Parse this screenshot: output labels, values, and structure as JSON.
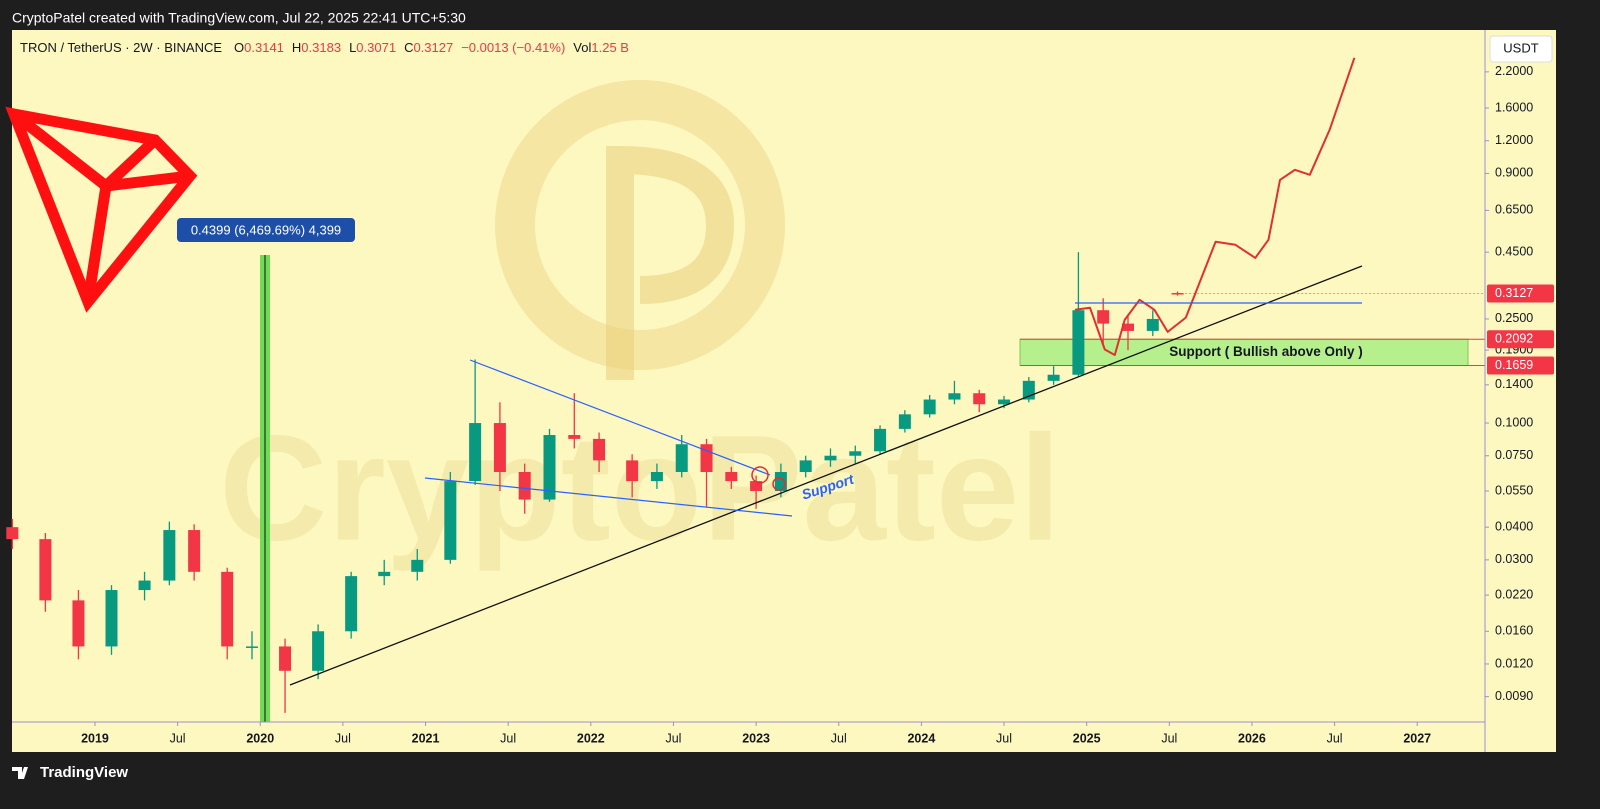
{
  "top_bar": "CryptoPatel created with TradingView.com, Jul 22, 2025 22:41 UTC+5:30",
  "footer": "TradingView",
  "chart_data": {
    "type": "candlestick",
    "title": "TRON / TetherUS · 2W · BINANCE",
    "ohlc_labels": [
      "O",
      "H",
      "L",
      "C"
    ],
    "change": "−0.0013 (−0.41%)",
    "volume_label": "Vol",
    "volume": "1.25 B",
    "currency": "USDT",
    "up_color": "#089981",
    "down_color": "#f23645",
    "x": [
      2018.5,
      2018.7,
      2018.9,
      2019.1,
      2019.3,
      2019.45,
      2019.6,
      2019.8,
      2019.95,
      2020.15,
      2020.35,
      2020.55,
      2020.75,
      2020.95,
      2021.15,
      2021.3,
      2021.45,
      2021.6,
      2021.75,
      2021.9,
      2022.05,
      2022.25,
      2022.4,
      2022.55,
      2022.7,
      2022.85,
      2023.0,
      2023.15,
      2023.3,
      2023.45,
      2023.6,
      2023.75,
      2023.9,
      2024.05,
      2024.2,
      2024.35,
      2024.5,
      2024.65,
      2024.8,
      2024.95,
      2025.1,
      2025.25,
      2025.4,
      2025.55
    ],
    "open": [
      0.04,
      0.036,
      0.021,
      0.014,
      0.023,
      0.025,
      0.039,
      0.027,
      0.014,
      0.014,
      0.0113,
      0.016,
      0.026,
      0.027,
      0.03,
      0.06,
      0.1,
      0.065,
      0.051,
      0.09,
      0.087,
      0.072,
      0.06,
      0.065,
      0.083,
      0.065,
      0.06,
      0.055,
      0.065,
      0.072,
      0.075,
      0.078,
      0.095,
      0.108,
      0.123,
      0.13,
      0.118,
      0.123,
      0.145,
      0.153,
      0.27,
      0.24,
      0.225,
      0.3141
    ],
    "high": [
      0.043,
      0.038,
      0.023,
      0.024,
      0.027,
      0.042,
      0.041,
      0.028,
      0.016,
      0.015,
      0.017,
      0.027,
      0.03,
      0.033,
      0.065,
      0.175,
      0.12,
      0.07,
      0.095,
      0.13,
      0.092,
      0.076,
      0.07,
      0.09,
      0.087,
      0.068,
      0.063,
      0.07,
      0.075,
      0.08,
      0.082,
      0.098,
      0.112,
      0.128,
      0.145,
      0.134,
      0.127,
      0.15,
      0.165,
      0.45,
      0.3,
      0.26,
      0.27,
      0.3183
    ],
    "low": [
      0.033,
      0.019,
      0.0125,
      0.013,
      0.021,
      0.024,
      0.025,
      0.0125,
      0.0125,
      0.0078,
      0.0105,
      0.015,
      0.024,
      0.025,
      0.029,
      0.058,
      0.055,
      0.045,
      0.05,
      0.08,
      0.065,
      0.052,
      0.056,
      0.062,
      0.048,
      0.056,
      0.047,
      0.052,
      0.062,
      0.068,
      0.07,
      0.076,
      0.092,
      0.105,
      0.118,
      0.11,
      0.114,
      0.12,
      0.14,
      0.15,
      0.2,
      0.19,
      0.215,
      0.3071
    ],
    "close": [
      0.036,
      0.021,
      0.014,
      0.023,
      0.025,
      0.039,
      0.027,
      0.014,
      0.014,
      0.0113,
      0.016,
      0.026,
      0.027,
      0.03,
      0.06,
      0.1,
      0.065,
      0.051,
      0.09,
      0.087,
      0.072,
      0.06,
      0.065,
      0.083,
      0.065,
      0.06,
      0.055,
      0.065,
      0.072,
      0.075,
      0.078,
      0.095,
      0.108,
      0.123,
      0.13,
      0.118,
      0.123,
      0.145,
      0.153,
      0.27,
      0.24,
      0.225,
      0.25,
      0.3127
    ],
    "xlim": [
      2018.498,
      2027.41
    ],
    "xticks": [
      {
        "value": 2019,
        "label": "2019"
      },
      {
        "value": 2019.5,
        "label": "Jul"
      },
      {
        "value": 2020,
        "label": "2020"
      },
      {
        "value": 2020.5,
        "label": "Jul"
      },
      {
        "value": 2021,
        "label": "2021"
      },
      {
        "value": 2021.5,
        "label": "Jul"
      },
      {
        "value": 2022,
        "label": "2022"
      },
      {
        "value": 2022.5,
        "label": "Jul"
      },
      {
        "value": 2023,
        "label": "2023"
      },
      {
        "value": 2023.5,
        "label": "Jul"
      },
      {
        "value": 2024,
        "label": "2024"
      },
      {
        "value": 2024.5,
        "label": "Jul"
      },
      {
        "value": 2025,
        "label": "2025"
      },
      {
        "value": 2025.5,
        "label": "Jul"
      },
      {
        "value": 2026,
        "label": "2026"
      },
      {
        "value": 2026.5,
        "label": "Jul"
      },
      {
        "value": 2027,
        "label": "2027"
      }
    ],
    "ylim": [
      0.0072,
      3.18
    ],
    "log_scale": true,
    "yticks": [
      {
        "value": 2.2,
        "label": "2.2000"
      },
      {
        "value": 1.6,
        "label": "1.6000"
      },
      {
        "value": 1.2,
        "label": "1.2000"
      },
      {
        "value": 0.9,
        "label": "0.9000"
      },
      {
        "value": 0.65,
        "label": "0.6500"
      },
      {
        "value": 0.45,
        "label": "0.4500"
      },
      {
        "value": 0.25,
        "label": "0.2500"
      },
      {
        "value": 0.19,
        "label": "0.1900"
      },
      {
        "value": 0.14,
        "label": "0.1400"
      },
      {
        "value": 0.1,
        "label": "0.1000"
      },
      {
        "value": 0.075,
        "label": "0.0750"
      },
      {
        "value": 0.055,
        "label": "0.0550"
      },
      {
        "value": 0.04,
        "label": "0.0400"
      },
      {
        "value": 0.03,
        "label": "0.0300"
      },
      {
        "value": 0.022,
        "label": "0.0220"
      },
      {
        "value": 0.016,
        "label": "0.0160"
      },
      {
        "value": 0.012,
        "label": "0.0120"
      },
      {
        "value": 0.009,
        "label": "0.0090"
      }
    ],
    "price_lines": [
      0.2092,
      0.1659
    ],
    "price_line_color": "#f23645",
    "projection": {
      "color": "#e0302f",
      "x": [
        2024.93,
        2025.02,
        2025.11,
        2025.17,
        2025.23,
        2025.32,
        2025.41,
        2025.49,
        2025.6,
        2025.69,
        2025.78,
        2025.9,
        2026.02,
        2026.1,
        2026.17,
        2026.26,
        2026.35,
        2026.47,
        2026.62
      ],
      "values": [
        0.271,
        0.276,
        0.191,
        0.182,
        0.248,
        0.296,
        0.271,
        0.223,
        0.253,
        0.353,
        0.493,
        0.48,
        0.428,
        0.502,
        0.85,
        0.929,
        0.889,
        1.32,
        2.49
      ]
    },
    "measure_label": "0.4399 (6,469.69%) 4,399",
    "zone_label": "Support ( Bullish above Only )",
    "support_label": "Support",
    "watermark": "CryptoPatel"
  }
}
